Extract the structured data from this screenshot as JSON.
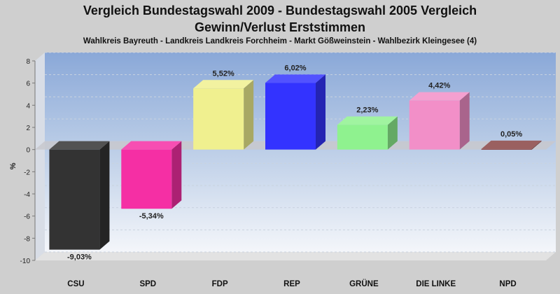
{
  "chart_data": {
    "type": "bar",
    "title": "Vergleich Bundestagswahl 2009 - Bundestagswahl 2005 Vergleich",
    "title_line2": "Gewinn/Verlust Erststimmen",
    "subtitle": "Wahlkreis Bayreuth - Landkreis Landkreis Forchheim - Markt Gößweinstein - Wahlbezirk Kleingesee (4)",
    "xlabel": "",
    "ylabel": "%",
    "ylim": [
      -10,
      8
    ],
    "yticks": [
      -10,
      -8,
      -6,
      -4,
      -2,
      0,
      2,
      4,
      6,
      8
    ],
    "grid": true,
    "categories": [
      "CSU",
      "SPD",
      "FDP",
      "REP",
      "GRÜNE",
      "DIE LINKE",
      "NPD"
    ],
    "values": [
      -9.03,
      -5.34,
      5.52,
      6.02,
      2.23,
      4.42,
      0.05
    ],
    "value_labels": [
      "-9,03%",
      "-5,34%",
      "5,52%",
      "6,02%",
      "2,23%",
      "4,42%",
      "0,05%"
    ],
    "colors": [
      "#333333",
      "#f52fa4",
      "#f0f08f",
      "#3333ff",
      "#8ff28f",
      "#f28fc8",
      "#884444"
    ]
  }
}
